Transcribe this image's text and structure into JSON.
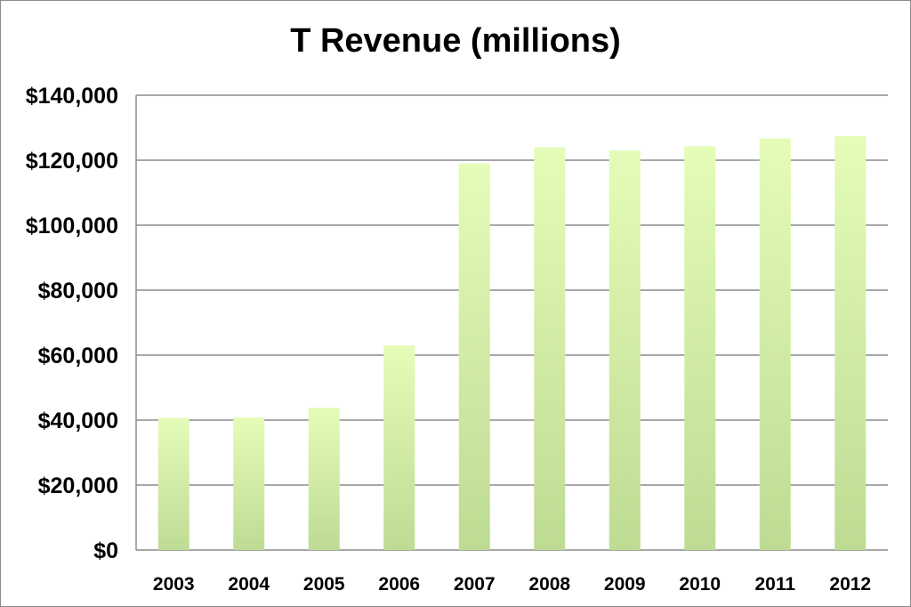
{
  "chart_data": {
    "type": "bar",
    "title": "T Revenue (millions)",
    "xlabel": "",
    "ylabel": "",
    "categories": [
      "2003",
      "2004",
      "2005",
      "2006",
      "2007",
      "2008",
      "2009",
      "2010",
      "2011",
      "2012"
    ],
    "values": [
      40700,
      40800,
      43800,
      63000,
      119000,
      124000,
      123000,
      124300,
      126700,
      127400
    ],
    "ylim": [
      0,
      140000
    ],
    "yticks": [
      0,
      20000,
      40000,
      60000,
      80000,
      100000,
      120000,
      140000
    ],
    "ytick_labels": [
      "$0",
      "$20,000",
      "$40,000",
      "$60,000",
      "$80,000",
      "$100,000",
      "$120,000",
      "$140,000"
    ],
    "grid": true,
    "legend": "none",
    "colors": {
      "bar_top": "#e4fcb8",
      "bar_bottom": "#bedb94",
      "gridline": "#8c8c8c",
      "border": "#8c8c8c"
    }
  }
}
